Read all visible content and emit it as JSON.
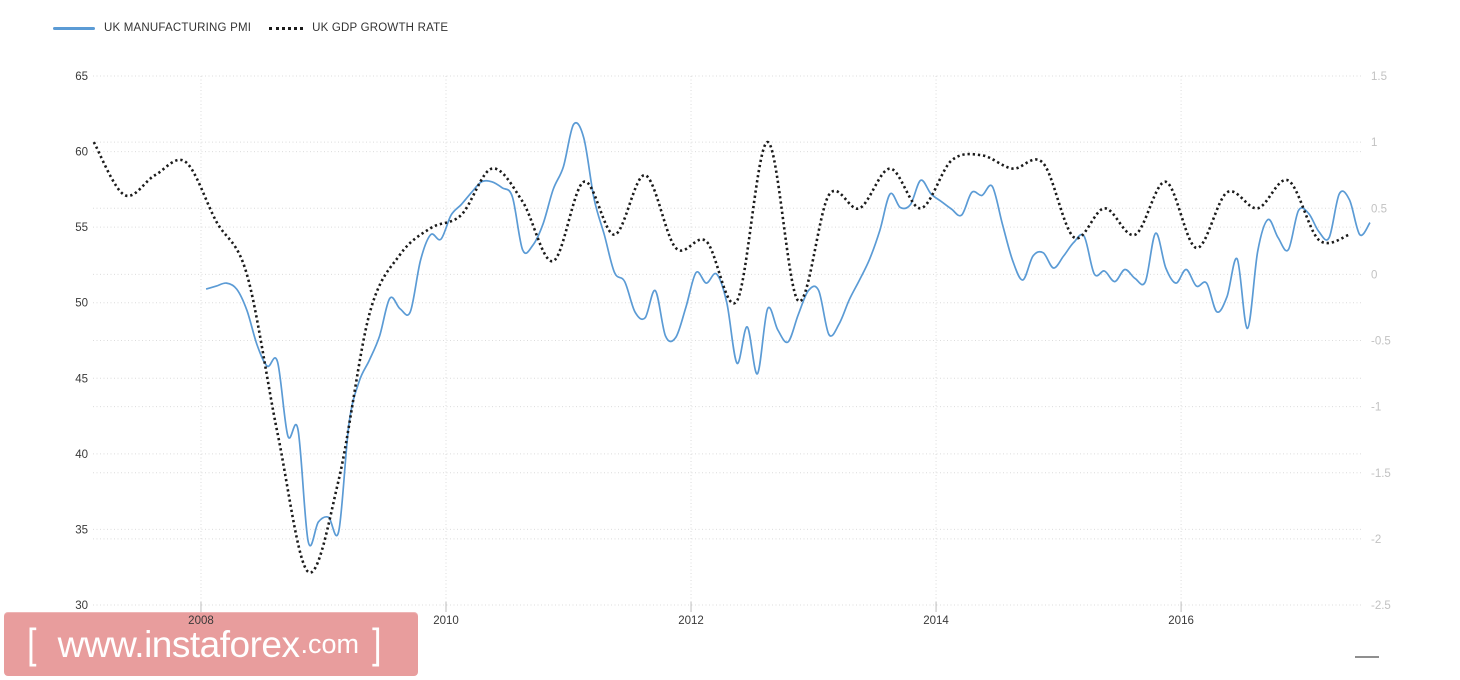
{
  "legend": {
    "items": [
      {
        "label": "UK MANUFACTURING PMI",
        "color": "#5b9bd5",
        "style": "solid"
      },
      {
        "label": "UK GDP GROWTH RATE",
        "color": "#1b1b1b",
        "style": "dotted"
      }
    ]
  },
  "watermark": {
    "bracket_left": "[",
    "text_main": "www.instaforex",
    "text_suffix": ".com",
    "bracket_right": "]",
    "bg_color": "#e89d9d",
    "text_color": "#ffffff"
  },
  "colors": {
    "pmi_line": "#5b9bd5",
    "gdp_line": "#1b1b1b",
    "grid": "#dcdcdc",
    "tick_mark": "#bdbdbd",
    "label_dark": "#3a3a3a",
    "label_light": "#c2c2c2",
    "background": "#ffffff"
  },
  "chart_data": {
    "type": "line",
    "title": "",
    "grid": true,
    "legend_position": "top-left",
    "x_axis": {
      "range": [
        2007.135,
        2017.444
      ],
      "tick_values": [
        2008,
        2010,
        2012,
        2014,
        2016
      ],
      "tick_labels": [
        "2008",
        "2010",
        "2012",
        "2014",
        "2016"
      ]
    },
    "left_axis": {
      "range": [
        30,
        65
      ],
      "tick_values": [
        65,
        60,
        55,
        50,
        45,
        40,
        35,
        30
      ],
      "tick_labels": [
        "65",
        "60",
        "55",
        "50",
        "45",
        "40",
        "35",
        "30"
      ]
    },
    "right_axis": {
      "range": [
        -2.5,
        1.5
      ],
      "tick_values": [
        1.5,
        1,
        0.5,
        0,
        -0.5,
        -1,
        -1.5,
        -2,
        -2.5
      ],
      "tick_labels": [
        "1.5",
        "1",
        "0.5",
        "0",
        "-0.5",
        "-1",
        "-1.5",
        "-2",
        "-2.5"
      ]
    },
    "series": [
      {
        "name": "UK MANUFACTURING PMI",
        "axis": "left",
        "color": "#5b9bd5",
        "line_style": "solid",
        "frequency": "monthly",
        "start_year": 2008,
        "values": [
          50.9,
          51.1,
          51.3,
          50.9,
          49.5,
          47.2,
          45.8,
          46.1,
          41.2,
          41.6,
          34.2,
          35.5,
          35.8,
          34.9,
          42.0,
          44.8,
          46.2,
          47.8,
          50.3,
          49.6,
          49.4,
          52.8,
          54.5,
          54.2,
          55.8,
          56.5,
          57.3,
          58.0,
          58.0,
          57.6,
          57.0,
          53.5,
          53.8,
          55.2,
          57.5,
          59.0,
          61.8,
          60.9,
          56.9,
          54.5,
          52.0,
          51.4,
          49.4,
          49.0,
          50.8,
          47.8,
          47.7,
          49.7,
          52.0,
          51.3,
          51.9,
          50.0,
          46.0,
          48.4,
          45.3,
          49.6,
          48.2,
          47.4,
          49.2,
          50.8,
          50.8,
          47.9,
          48.6,
          50.2,
          51.5,
          52.9,
          54.8,
          57.2,
          56.3,
          56.5,
          58.1,
          57.2,
          56.7,
          56.2,
          55.8,
          57.3,
          57.1,
          57.7,
          55.2,
          52.8,
          51.5,
          53.1,
          53.3,
          52.3,
          53.1,
          54.0,
          54.4,
          51.9,
          52.1,
          51.4,
          52.2,
          51.6,
          51.4,
          54.6,
          52.3,
          51.3,
          52.2,
          51.1,
          51.3,
          49.4,
          50.4,
          52.9,
          48.3,
          53.4,
          55.5,
          54.3,
          53.5,
          56.1,
          55.9,
          54.7,
          54.3,
          57.2,
          56.8,
          54.5,
          55.3
        ]
      },
      {
        "name": "UK GDP GROWTH RATE",
        "axis": "right",
        "color": "#1b1b1b",
        "line_style": "dotted",
        "frequency": "quarterly",
        "start_year": 2007,
        "values": [
          1.0,
          0.6,
          0.75,
          0.85,
          0.4,
          0.0,
          -1.2,
          -2.25,
          -1.55,
          -0.3,
          0.15,
          0.35,
          0.45,
          0.8,
          0.55,
          0.1,
          0.7,
          0.3,
          0.75,
          0.2,
          0.25,
          -0.2,
          1.0,
          -0.2,
          0.6,
          0.5,
          0.8,
          0.5,
          0.86,
          0.9,
          0.8,
          0.84,
          0.28,
          0.5,
          0.3,
          0.7,
          0.2,
          0.62,
          0.5,
          0.71,
          0.26,
          0.3
        ]
      }
    ]
  }
}
